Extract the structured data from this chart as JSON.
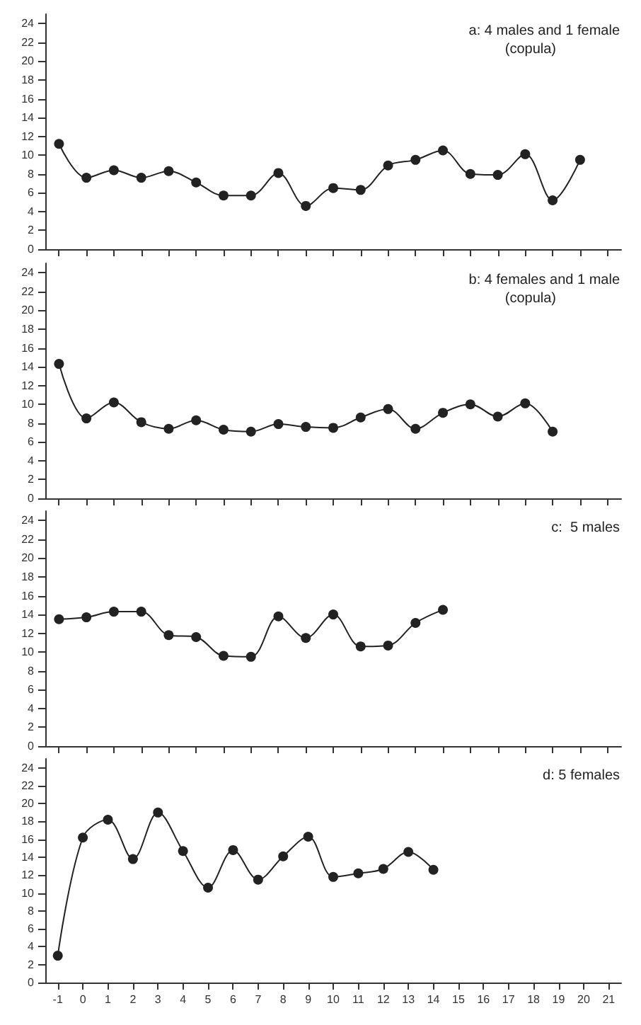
{
  "chart_data": [
    {
      "type": "line",
      "title": "a: 4 males and 1 female",
      "subtitle": "(copula)",
      "categories": [
        null,
        null,
        null,
        null,
        null,
        null,
        null,
        null,
        null,
        null,
        null,
        null,
        null,
        null,
        null,
        null,
        null,
        null,
        null,
        null,
        null
      ],
      "series": [
        {
          "color": "#222222",
          "values": [
            11.2,
            7.6,
            8.4,
            7.6,
            8.3,
            7.1,
            5.7,
            5.7,
            8.1,
            4.6,
            6.5,
            6.3,
            8.9,
            9.5,
            10.5,
            8.0,
            7.9,
            10.1,
            5.2,
            9.5,
            null
          ]
        }
      ],
      "ylim": [
        0,
        25
      ],
      "yticks": [
        0,
        2,
        4,
        6,
        8,
        10,
        12,
        14,
        16,
        18,
        20,
        22,
        24
      ],
      "tick_labels": "y",
      "marker": "circle"
    },
    {
      "type": "line",
      "title": "b: 4 females and 1 male",
      "subtitle": "(copula)",
      "categories": [
        null,
        null,
        null,
        null,
        null,
        null,
        null,
        null,
        null,
        null,
        null,
        null,
        null,
        null,
        null,
        null,
        null,
        null,
        null,
        null,
        null
      ],
      "series": [
        {
          "color": "#222222",
          "values": [
            14.3,
            8.5,
            10.2,
            8.1,
            7.4,
            8.3,
            7.3,
            7.1,
            7.9,
            7.6,
            7.5,
            8.6,
            9.5,
            7.4,
            9.1,
            10.0,
            8.7,
            10.1,
            7.1,
            null,
            null
          ]
        }
      ],
      "ylim": [
        0,
        25
      ],
      "yticks": [
        0,
        2,
        4,
        6,
        8,
        10,
        12,
        14,
        16,
        18,
        20,
        22,
        24
      ],
      "tick_labels": "y",
      "marker": "circle"
    },
    {
      "type": "line",
      "title": "c:  5 males",
      "categories": [
        null,
        null,
        null,
        null,
        null,
        null,
        null,
        null,
        null,
        null,
        null,
        null,
        null,
        null,
        null,
        null,
        null,
        null,
        null,
        null,
        null
      ],
      "series": [
        {
          "color": "#222222",
          "values": [
            13.5,
            13.7,
            14.3,
            14.3,
            11.8,
            11.6,
            9.6,
            9.5,
            13.8,
            11.5,
            14.0,
            10.6,
            10.7,
            13.1,
            14.5,
            null,
            null,
            null,
            null,
            null,
            null
          ]
        }
      ],
      "ylim": [
        0,
        25
      ],
      "yticks": [
        0,
        2,
        4,
        6,
        8,
        10,
        12,
        14,
        16,
        18,
        20,
        22,
        24
      ],
      "tick_labels": "y",
      "marker": "circle"
    },
    {
      "type": "line",
      "title": "d: 5 females",
      "categories": [
        "-1",
        "0",
        "1",
        "2",
        "3",
        "4",
        "5",
        "6",
        "7",
        "8",
        "9",
        "10",
        "11",
        "12",
        "13",
        "14",
        "15",
        "16",
        "17",
        "18",
        "19",
        "20",
        "21"
      ],
      "series": [
        {
          "color": "#222222",
          "values": [
            3.0,
            16.2,
            18.2,
            13.8,
            19.0,
            14.7,
            10.6,
            14.8,
            11.5,
            14.1,
            16.3,
            11.8,
            12.2,
            12.7,
            14.6,
            12.6,
            null,
            null,
            null,
            null,
            null,
            null,
            null
          ]
        }
      ],
      "ylim": [
        0,
        25
      ],
      "yticks": [
        0,
        2,
        4,
        6,
        8,
        10,
        12,
        14,
        16,
        18,
        20,
        22,
        24
      ],
      "marker": "circle"
    }
  ]
}
